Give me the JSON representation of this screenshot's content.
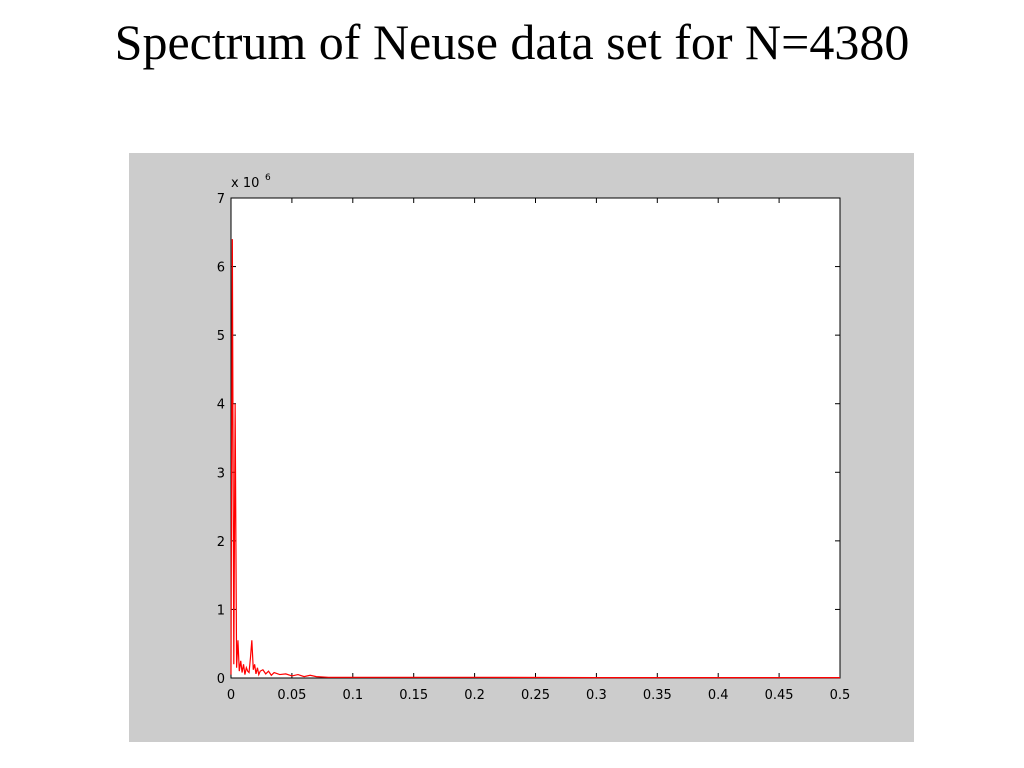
{
  "chart_data": {
    "type": "line",
    "title": "Spectrum of Neuse data set for N=4380",
    "y_scale_label": "x 10",
    "y_scale_exponent": "6",
    "x": [
      0,
      0.0011,
      0.0023,
      0.0034,
      0.0046,
      0.0057,
      0.0068,
      0.008,
      0.0091,
      0.0103,
      0.0114,
      0.0126,
      0.0137,
      0.0148,
      0.016,
      0.0171,
      0.0183,
      0.0194,
      0.0205,
      0.0217,
      0.0228,
      0.024,
      0.0262,
      0.0285,
      0.0308,
      0.0331,
      0.0354,
      0.04,
      0.045,
      0.05,
      0.055,
      0.06,
      0.065,
      0.07,
      0.08,
      0.1,
      0.15,
      0.2,
      0.3,
      0.4,
      0.5
    ],
    "values": [
      0.05,
      6.4,
      0.2,
      4.0,
      0.15,
      0.55,
      0.1,
      0.25,
      0.08,
      0.2,
      0.05,
      0.15,
      0.1,
      0.08,
      0.3,
      0.55,
      0.12,
      0.2,
      0.06,
      0.15,
      0.05,
      0.1,
      0.12,
      0.06,
      0.1,
      0.04,
      0.08,
      0.05,
      0.06,
      0.03,
      0.05,
      0.02,
      0.04,
      0.02,
      0.01,
      0.01,
      0.01,
      0.01,
      0.005,
      0.005,
      0.005
    ],
    "color": "#ff0000",
    "xlim": [
      0,
      0.5
    ],
    "xticks": [
      0,
      0.05,
      0.1,
      0.15,
      0.2,
      0.25,
      0.3,
      0.35,
      0.4,
      0.45,
      0.5
    ],
    "ylim": [
      0,
      7
    ],
    "yticks": [
      0,
      1,
      2,
      3,
      4,
      5,
      6,
      7
    ],
    "grid": false
  }
}
